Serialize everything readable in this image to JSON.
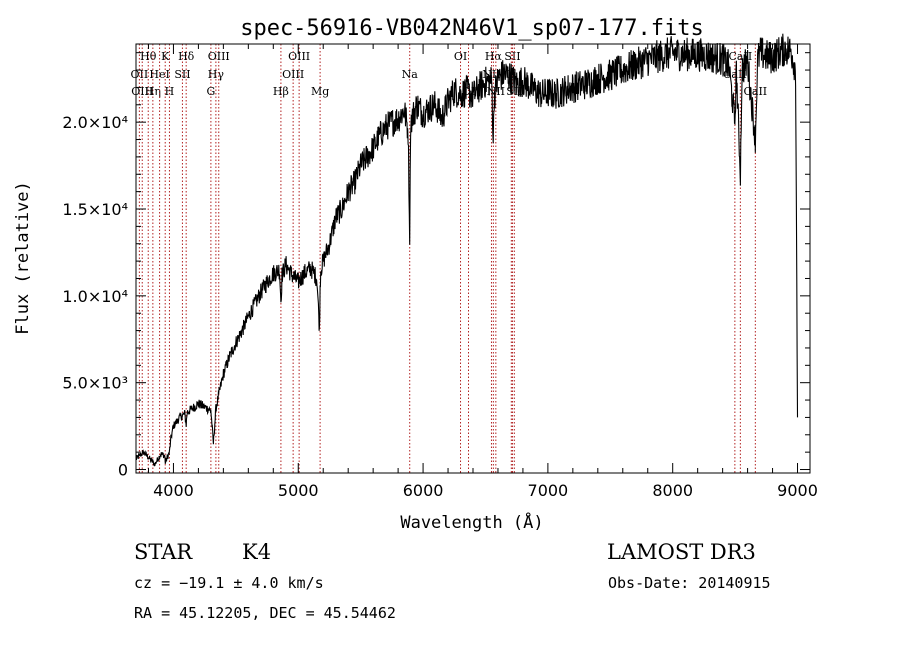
{
  "chart_data": {
    "type": "line",
    "title": "spec-56916-VB042N46V1_sp07-177.fits",
    "xlabel": "Wavelength (Å)",
    "ylabel": "Flux (relative)",
    "xlim": [
      3700,
      9100
    ],
    "ylim": [
      -200,
      24500
    ],
    "x_ticks": [
      {
        "value": 4000,
        "label": "4000"
      },
      {
        "value": 5000,
        "label": "5000"
      },
      {
        "value": 6000,
        "label": "6000"
      },
      {
        "value": 7000,
        "label": "7000"
      },
      {
        "value": 8000,
        "label": "8000"
      },
      {
        "value": 9000,
        "label": "9000"
      }
    ],
    "y_ticks": [
      {
        "value": 0,
        "label": "0"
      },
      {
        "value": 5000,
        "label": "5.0×10³"
      },
      {
        "value": 10000,
        "label": "1.0×10⁴"
      },
      {
        "value": 15000,
        "label": "1.5×10⁴"
      },
      {
        "value": 20000,
        "label": "2.0×10⁴"
      }
    ],
    "series": [
      {
        "name": "spectrum",
        "x": [
          3700,
          3760,
          3800,
          3850,
          3900,
          3930,
          3935,
          3968,
          3980,
          4000,
          4050,
          4090,
          4102,
          4110,
          4150,
          4200,
          4250,
          4300,
          4320,
          4340,
          4360,
          4400,
          4450,
          4500,
          4550,
          4600,
          4650,
          4700,
          4750,
          4800,
          4850,
          4861,
          4870,
          4900,
          4950,
          5000,
          5050,
          5100,
          5150,
          5170,
          5175,
          5180,
          5200,
          5250,
          5300,
          5350,
          5400,
          5450,
          5500,
          5550,
          5600,
          5650,
          5700,
          5750,
          5800,
          5850,
          5880,
          5893,
          5900,
          5950,
          6000,
          6050,
          6100,
          6150,
          6200,
          6250,
          6300,
          6350,
          6400,
          6450,
          6500,
          6550,
          6562,
          6570,
          6600,
          6650,
          6700,
          6750,
          6800,
          6850,
          6900,
          6950,
          7000,
          7050,
          7100,
          7150,
          7200,
          7300,
          7400,
          7500,
          7600,
          7700,
          7800,
          7900,
          8000,
          8100,
          8200,
          8300,
          8400,
          8450,
          8498,
          8510,
          8542,
          8555,
          8600,
          8662,
          8680,
          8700,
          8750,
          8800,
          8850,
          8900,
          8950,
          8985,
          9000
        ],
        "y": [
          600,
          1000,
          700,
          300,
          900,
          800,
          400,
          1000,
          1800,
          2500,
          3000,
          3200,
          2600,
          3300,
          3500,
          3800,
          3600,
          3400,
          1500,
          3500,
          4200,
          5500,
          6500,
          7300,
          8000,
          8800,
          9500,
          10200,
          10800,
          11300,
          11500,
          9700,
          11200,
          11800,
          11200,
          10800,
          11300,
          11600,
          11000,
          8000,
          10500,
          11500,
          12000,
          13000,
          14500,
          15000,
          16000,
          16500,
          17500,
          18000,
          18500,
          19200,
          19700,
          20000,
          20200,
          20700,
          19500,
          13500,
          20000,
          21000,
          20500,
          20800,
          21000,
          20200,
          21200,
          21800,
          21600,
          21800,
          21500,
          22000,
          22300,
          22400,
          19000,
          21500,
          22500,
          22800,
          22600,
          22200,
          22400,
          22100,
          21800,
          21600,
          21700,
          21600,
          21700,
          21900,
          22000,
          22200,
          22500,
          22700,
          23000,
          23300,
          23600,
          23800,
          24000,
          23900,
          23900,
          23800,
          23600,
          23200,
          20000,
          23000,
          17000,
          23000,
          23500,
          19000,
          23500,
          24000,
          23800,
          23700,
          24000,
          24200,
          24100,
          23000,
          3000
        ]
      }
    ],
    "lines": [
      {
        "wl": 3727,
        "label": "OII",
        "row": 1
      },
      {
        "wl": 3750,
        "label": "OIII",
        "row": 2
      },
      {
        "wl": 3798,
        "label": "Hθ",
        "row": 0
      },
      {
        "wl": 3835,
        "label": "Hη",
        "row": 2
      },
      {
        "wl": 3889,
        "label": "HeI",
        "row": 1
      },
      {
        "wl": 3934,
        "label": "K",
        "row": 0
      },
      {
        "wl": 3968,
        "label": "H",
        "row": 2
      },
      {
        "wl": 4072,
        "label": "SII",
        "row": 1
      },
      {
        "wl": 4102,
        "label": "Hδ",
        "row": 0
      },
      {
        "wl": 4300,
        "label": "G",
        "row": 2
      },
      {
        "wl": 4340,
        "label": "Hγ",
        "row": 1
      },
      {
        "wl": 4363,
        "label": "OIII",
        "row": 0
      },
      {
        "wl": 4861,
        "label": "Hβ",
        "row": 2
      },
      {
        "wl": 4959,
        "label": "OIII",
        "row": 1
      },
      {
        "wl": 5007,
        "label": "OIII",
        "row": 0
      },
      {
        "wl": 5175,
        "label": "Mg",
        "row": 2
      },
      {
        "wl": 5893,
        "label": "Na",
        "row": 1
      },
      {
        "wl": 6300,
        "label": "OI",
        "row": 0
      },
      {
        "wl": 6364,
        "label": "OI",
        "row": 2
      },
      {
        "wl": 6548,
        "label": "NII",
        "row": 1
      },
      {
        "wl": 6563,
        "label": "Hα",
        "row": 0
      },
      {
        "wl": 6583,
        "label": "NII",
        "row": 2
      },
      {
        "wl": 6707,
        "label": "Li",
        "row": 1
      },
      {
        "wl": 6716,
        "label": "SII",
        "row": 0
      },
      {
        "wl": 6731,
        "label": "SII",
        "row": 2
      },
      {
        "wl": 8498,
        "label": "CaII",
        "row": 1
      },
      {
        "wl": 8542,
        "label": "CaII",
        "row": 0
      },
      {
        "wl": 8662,
        "label": "CaII",
        "row": 2
      }
    ]
  },
  "info": {
    "object_class": "STAR",
    "subclass": "K4",
    "survey": "LAMOST DR3",
    "redshift": "cz = −19.1 ± 4.0 km/s",
    "obs_date": "Obs-Date: 20140915",
    "coords": "RA =  45.12205, DEC =  45.54462"
  },
  "colors": {
    "line_marker": "#b22222",
    "spectrum": "#000000",
    "axis": "#000000"
  }
}
